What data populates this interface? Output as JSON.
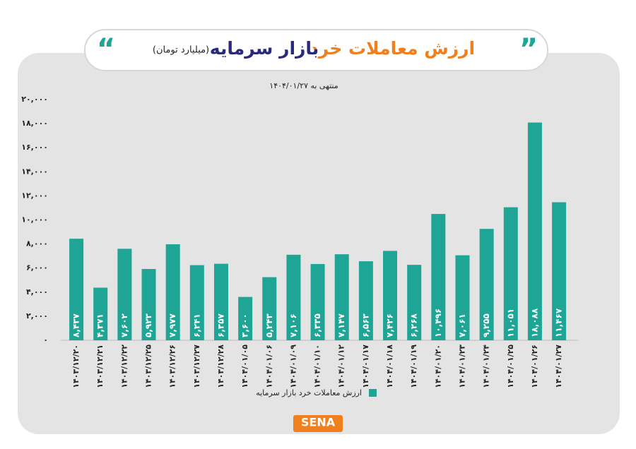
{
  "chart_data": {
    "type": "bar",
    "title_parts": [
      "ارزش معاملات خرد",
      "بازار سرمایه",
      "(میلیارد تومان)"
    ],
    "subtitle": "منتهی به ۱۴۰۴/۰۱/۲۷",
    "categories": [
      "۱۴۰۳/۱۲/۲۰",
      "۱۴۰۳/۱۲/۲۱",
      "۱۴۰۳/۱۲/۲۲",
      "۱۴۰۳/۱۲/۲۵",
      "۱۴۰۳/۱۲/۲۶",
      "۱۴۰۳/۱۲/۲۷",
      "۱۴۰۳/۱۲/۲۸",
      "۱۴۰۴/۰۱/۰۵",
      "۱۴۰۴/۰۱/۰۶",
      "۱۴۰۴/۰۱/۰۹",
      "۱۴۰۴/۰۱/۱۰",
      "۱۴۰۴/۰۱/۱۲",
      "۱۴۰۴/۰۱/۱۷",
      "۱۴۰۴/۰۱/۱۸",
      "۱۴۰۴/۰۱/۱۹",
      "۱۴۰۴/۰۱/۲۰",
      "۱۴۰۴/۰۱/۲۳",
      "۱۴۰۴/۰۱/۲۴",
      "۱۴۰۴/۰۱/۲۵",
      "۱۴۰۴/۰۱/۲۶",
      "۱۴۰۴/۰۱/۲۷"
    ],
    "series": [
      {
        "name": "ارزش معاملات خرد بازار سرمایه",
        "color": "#1fa596",
        "values": [
          8437,
          4371,
          7602,
          5923,
          7977,
          6241,
          6357,
          3600,
          5243,
          7106,
          6335,
          7147,
          6563,
          7426,
          6268,
          10496,
          7061,
          9255,
          11051,
          18088,
          11467
        ],
        "value_labels": [
          "۸,۴۳۷",
          "۴,۳۷۱",
          "۷,۶۰۲",
          "۵,۹۲۳",
          "۷,۹۷۷",
          "۶,۲۴۱",
          "۶,۳۵۷",
          "۳,۶۰۰",
          "۵,۲۴۳",
          "۷,۱۰۶",
          "۶,۳۳۵",
          "۷,۱۴۷",
          "۶,۵۶۳",
          "۷,۴۲۶",
          "۶,۲۶۸",
          "۱۰,۴۹۶",
          "۷,۰۶۱",
          "۹,۲۵۵",
          "۱۱,۰۵۱",
          "۱۸,۰۸۸",
          "۱۱,۴۶۷"
        ]
      }
    ],
    "ylim": [
      0,
      20000
    ],
    "yticks": [
      {
        "value": 0,
        "label": "۰"
      },
      {
        "value": 2000,
        "label": "۲,۰۰۰"
      },
      {
        "value": 4000,
        "label": "۴,۰۰۰"
      },
      {
        "value": 6000,
        "label": "۶,۰۰۰"
      },
      {
        "value": 8000,
        "label": "۸,۰۰۰"
      },
      {
        "value": 10000,
        "label": "۱۰,۰۰۰"
      },
      {
        "value": 12000,
        "label": "۱۲,۰۰۰"
      },
      {
        "value": 14000,
        "label": "۱۴,۰۰۰"
      },
      {
        "value": 16000,
        "label": "۱۶,۰۰۰"
      },
      {
        "value": 18000,
        "label": "۱۸,۰۰۰"
      },
      {
        "value": 20000,
        "label": "۲۰,۰۰۰"
      }
    ],
    "grid": false,
    "legend": "bottom",
    "logo": "SENA"
  }
}
